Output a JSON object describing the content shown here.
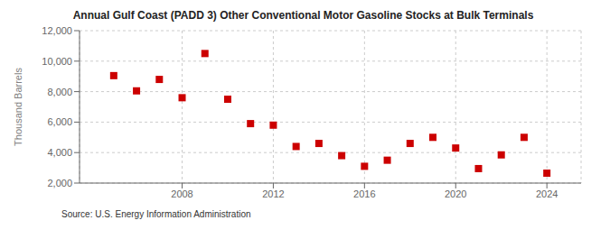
{
  "chart_data": {
    "type": "scatter",
    "title": "Annual Gulf Coast (PADD 3) Other Conventional Motor Gasoline Stocks at Bulk Terminals",
    "y_label": "Thousand Barrels",
    "annotations": [
      "Source: U.S. Energy Information Administration"
    ],
    "x": [
      2005,
      2006,
      2007,
      2008,
      2009,
      2010,
      2011,
      2012,
      2013,
      2014,
      2015,
      2016,
      2017,
      2018,
      2019,
      2020,
      2021,
      2022,
      2023,
      2024
    ],
    "values": [
      9050,
      8050,
      8800,
      7600,
      10500,
      7500,
      5900,
      5800,
      4400,
      4600,
      3800,
      3100,
      3500,
      4600,
      5000,
      4300,
      2950,
      3850,
      5000,
      2650
    ],
    "color": "#cc0000",
    "marker": "square",
    "xlim": [
      2003.5,
      2025.5
    ],
    "xticks": [
      2008,
      2012,
      2016,
      2020,
      2024
    ],
    "ylim": [
      2000,
      12000
    ],
    "yticks": [
      {
        "value": 2000,
        "label": "2,000"
      },
      {
        "value": 4000,
        "label": "4,000"
      },
      {
        "value": 6000,
        "label": "6,000"
      },
      {
        "value": 8000,
        "label": "8,000"
      },
      {
        "value": 10000,
        "label": "10,000"
      },
      {
        "value": 12000,
        "label": "12,000"
      }
    ],
    "grid": true
  }
}
